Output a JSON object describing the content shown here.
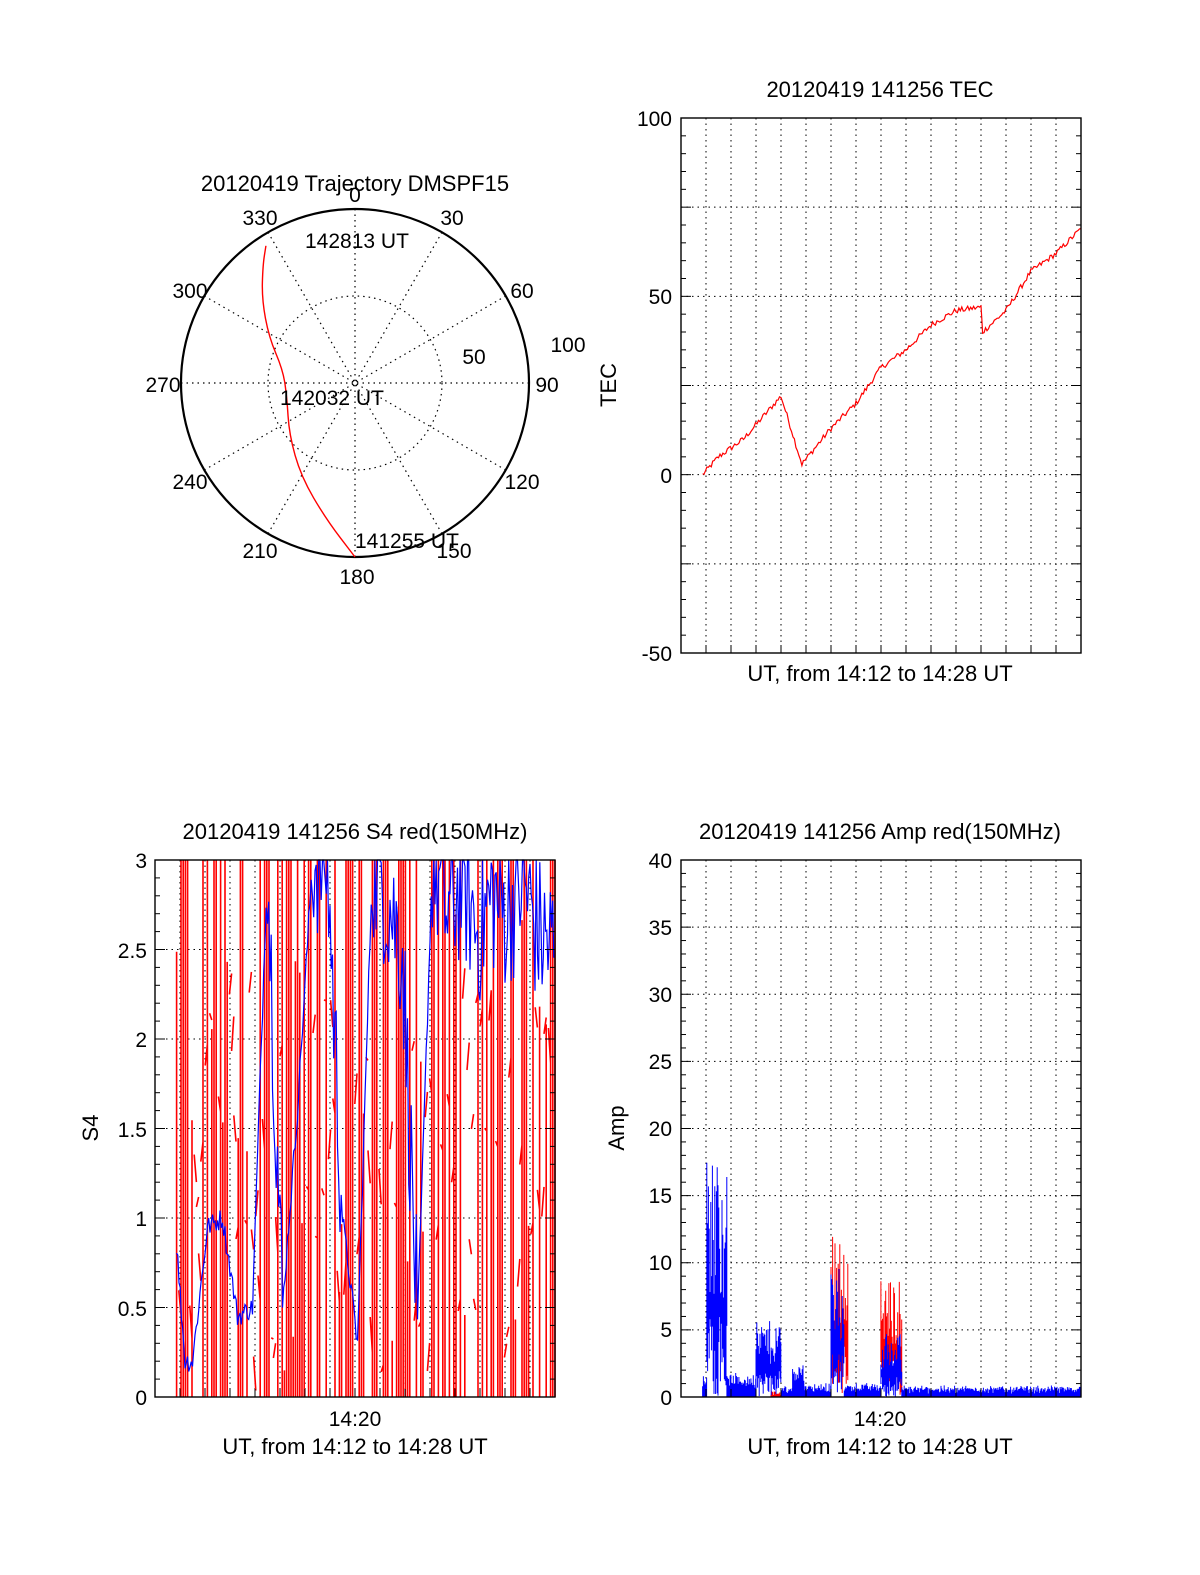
{
  "colors": {
    "red": "#ff0000",
    "blue": "#0000ff",
    "axis": "#000000",
    "grid": "#000000"
  },
  "chart_data": [
    {
      "id": "trajectory",
      "type": "polar",
      "title": "20120419 Trajectory DMSPF15",
      "angle_labels": [
        "0",
        "30",
        "60",
        "90",
        "120",
        "150",
        "180",
        "210",
        "240",
        "270",
        "300",
        "330"
      ],
      "radial_labels": [
        "50",
        "100"
      ],
      "radial_range": [
        0,
        100
      ],
      "grid": true,
      "annotations": [
        "142813 UT",
        "142032 UT",
        "141255 UT"
      ],
      "series": [
        {
          "color": "#ff0000",
          "points_az_r": [
            [
              180,
              100
            ],
            [
              192,
              80
            ],
            [
              210,
              62
            ],
            [
              232,
              48
            ],
            [
              258,
              40
            ],
            [
              280,
              42
            ],
            [
              298,
              56
            ],
            [
              312,
              72
            ],
            [
              322,
              86
            ],
            [
              327,
              94
            ]
          ]
        }
      ]
    },
    {
      "id": "tec",
      "type": "line",
      "title": "20120419 141256 TEC",
      "xlabel": "UT, from 14:12 to 14:28 UT",
      "ylabel": "TEC",
      "xlim": [
        14.2,
        14.4667
      ],
      "ylim": [
        -50,
        100
      ],
      "yticks": [
        "100",
        "50",
        "0",
        "-50"
      ],
      "grid": true,
      "series": [
        {
          "color": "#ff0000",
          "x": [
            14.2144,
            14.225,
            14.2417,
            14.2667,
            14.2806,
            14.3,
            14.3167,
            14.3333,
            14.35,
            14.3667,
            14.3833,
            14.4,
            14.4011,
            14.4167,
            14.4333,
            14.45,
            14.4667
          ],
          "y": [
            0,
            5,
            10,
            22,
            3,
            13,
            20,
            30,
            35,
            42,
            46,
            47,
            40,
            46,
            57,
            62,
            69
          ]
        }
      ]
    },
    {
      "id": "s4",
      "type": "line",
      "title": "20120419 141256 S4 red(150MHz)",
      "xlabel": "UT, from 14:12 to 14:28 UT",
      "ylabel": "S4",
      "xtick_labels": [
        "14:20"
      ],
      "xlim": [
        14.2,
        14.4667
      ],
      "ylim": [
        0,
        3
      ],
      "yticks": [
        "3",
        "2.5",
        "2",
        "1.5",
        "1",
        "0.5",
        "0"
      ],
      "grid": true,
      "series": [
        {
          "color": "#ff0000",
          "description_segments": [
            [
              14.2144,
              14.4667
            ]
          ]
        },
        {
          "color": "#0000ff",
          "x": [
            14.2144,
            14.22,
            14.225,
            14.235,
            14.245,
            14.255,
            14.265,
            14.275,
            14.285,
            14.295,
            14.305,
            14.315,
            14.325,
            14.335,
            14.345,
            14.355,
            14.365,
            14.375,
            14.385,
            14.395,
            14.405,
            14.415,
            14.425,
            14.435,
            14.445,
            14.455,
            14.4667
          ],
          "y": [
            0.85,
            0.2,
            0.2,
            0.95,
            1.0,
            0.45,
            0.5,
            3.0,
            0.5,
            1.6,
            3.0,
            3.0,
            1.0,
            0.3,
            3.0,
            2.8,
            2.5,
            0.4,
            3.0,
            2.7,
            2.9,
            2.6,
            2.8,
            2.7,
            2.9,
            2.6,
            2.5
          ]
        }
      ]
    },
    {
      "id": "amp",
      "type": "line",
      "title": "20120419 141256 Amp red(150MHz)",
      "xlabel": "UT, from 14:12 to 14:28 UT",
      "ylabel": "Amp",
      "xtick_labels": [
        "14:20"
      ],
      "xlim": [
        14.2,
        14.4667
      ],
      "ylim": [
        0,
        40
      ],
      "yticks": [
        "40",
        "35",
        "30",
        "25",
        "20",
        "15",
        "10",
        "5",
        "0"
      ],
      "grid": true,
      "series": [
        {
          "color": "#0000ff",
          "bursts": [
            [
              14.2144,
              14.2172,
              1.5
            ],
            [
              14.2172,
              14.2306,
              18
            ],
            [
              14.2306,
              14.25,
              1.5
            ],
            [
              14.25,
              14.2667,
              5.5
            ],
            [
              14.2667,
              14.2744,
              0.6
            ],
            [
              14.2744,
              14.2822,
              2.5
            ],
            [
              14.2822,
              14.3,
              0.8
            ],
            [
              14.3,
              14.3089,
              9.5
            ],
            [
              14.3089,
              14.3333,
              0.8
            ],
            [
              14.3333,
              14.3472,
              4.5
            ],
            [
              14.3472,
              14.4667,
              0.6
            ]
          ]
        },
        {
          "color": "#ff0000",
          "bursts": [
            [
              14.3,
              14.3117,
              12.5
            ],
            [
              14.3333,
              14.3472,
              8.5
            ],
            [
              14.26,
              14.27,
              0.2
            ]
          ]
        }
      ]
    }
  ]
}
